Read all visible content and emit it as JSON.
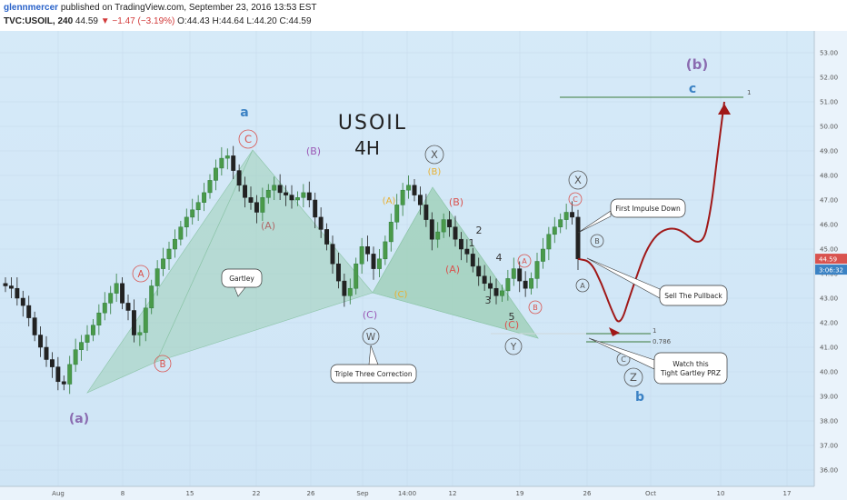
{
  "header": {
    "author": "glennmercer",
    "published": "published on TradingView.com, September 23, 2016 13:53 EST",
    "symbol": "TVC:USOIL, 240",
    "last": "44.59",
    "change": "▼ −1.47 (−3.19%)",
    "open": "O:44.43",
    "high": "H:44.64",
    "low": "L:44.20",
    "close": "C:44.59"
  },
  "chart_data": {
    "type": "candlestick",
    "title": "USOIL",
    "subtitle": "4H",
    "y_ticks": [
      "53.00",
      "52.00",
      "51.00",
      "50.00",
      "49.00",
      "48.00",
      "47.00",
      "46.00",
      "45.00",
      "44.00",
      "43.00",
      "42.00",
      "41.00",
      "40.00",
      "39.00",
      "38.00",
      "37.00",
      "36.00"
    ],
    "x_ticks": [
      "Aug",
      "8",
      "15",
      "22",
      "26",
      "Sep",
      "14:00",
      "12",
      "19",
      "26",
      "Oct",
      "10",
      "17"
    ],
    "price_label": "44.59",
    "countdown_label": "3:06:32",
    "fib_levels": [
      "1",
      "0.786"
    ],
    "top_fib_label": "1",
    "wave_labels": [
      {
        "t": "(a)",
        "c": "#8a6bb0"
      },
      {
        "t": "a",
        "c": "#3b82c4"
      },
      {
        "t": "C",
        "c": "#d9534f"
      },
      {
        "t": "(B)",
        "c": "#9b59b6"
      },
      {
        "t": "(A)",
        "c": "#b06a6a"
      },
      {
        "t": "A",
        "c": "#d9534f"
      },
      {
        "t": "B",
        "c": "#d9534f"
      },
      {
        "t": "(A)",
        "c": "#e8b030"
      },
      {
        "t": "(C)",
        "c": "#e8b030"
      },
      {
        "t": "(B)",
        "c": "#e8b030"
      },
      {
        "t": "X",
        "c": "#555555"
      },
      {
        "t": "(B)",
        "c": "#d9534f"
      },
      {
        "t": "(A)",
        "c": "#d9534f"
      },
      {
        "t": "1",
        "c": "#333333"
      },
      {
        "t": "2",
        "c": "#333333"
      },
      {
        "t": "3",
        "c": "#333333"
      },
      {
        "t": "4",
        "c": "#333333"
      },
      {
        "t": "5",
        "c": "#333333"
      },
      {
        "t": "(C)",
        "c": "#d9534f"
      },
      {
        "t": "(C)",
        "c": "#9b59b6"
      },
      {
        "t": "W",
        "c": "#555555"
      },
      {
        "t": "Y",
        "c": "#555555"
      },
      {
        "t": "X",
        "c": "#555555"
      },
      {
        "t": "C",
        "c": "#d9534f"
      },
      {
        "t": "B",
        "c": "#555555"
      },
      {
        "t": "A",
        "c": "#555555"
      },
      {
        "t": "A",
        "c": "#d9534f"
      },
      {
        "t": "B",
        "c": "#d9534f"
      },
      {
        "t": "C",
        "c": "#555555"
      },
      {
        "t": "Z",
        "c": "#555555"
      },
      {
        "t": "b",
        "c": "#3b82c4"
      },
      {
        "t": "(b)",
        "c": "#8a6bb0"
      },
      {
        "t": "c",
        "c": "#3b82c4"
      }
    ],
    "callouts": [
      "Gartley",
      "Triple Three Correction",
      "First Impulse Down",
      "Sell The Pullback",
      "Watch this Tight Gartley PRZ"
    ],
    "close_series": [
      43.5,
      43.4,
      43.0,
      42.7,
      42.2,
      41.5,
      41.0,
      40.5,
      40.2,
      39.6,
      39.5,
      40.3,
      40.9,
      41.2,
      41.5,
      41.9,
      42.4,
      42.8,
      43.2,
      43.6,
      42.8,
      42.5,
      41.5,
      41.6,
      42.6,
      43.5,
      44.2,
      44.6,
      45.0,
      45.4,
      45.9,
      46.3,
      46.6,
      46.9,
      47.3,
      47.8,
      48.3,
      48.7,
      48.8,
      48.2,
      47.6,
      47.1,
      46.9,
      46.5,
      47.1,
      47.4,
      47.6,
      47.3,
      47.2,
      47.0,
      47.1,
      47.3,
      47.0,
      46.3,
      45.8,
      45.2,
      44.4,
      43.7,
      43.1,
      43.4,
      44.4,
      45.1,
      44.8,
      44.2,
      44.6,
      45.3,
      46.1,
      46.8,
      47.4,
      47.6,
      47.2,
      46.8,
      46.2,
      45.4,
      45.7,
      46.2,
      45.9,
      45.4,
      45.0,
      44.8,
      44.3,
      43.9,
      43.6,
      43.4,
      43.1,
      43.3,
      43.8,
      44.2,
      43.7,
      43.4,
      43.8,
      44.5,
      45.0,
      45.6,
      45.9,
      46.2,
      46.5,
      46.3,
      44.6
    ],
    "projection_path_prices": [
      44.6,
      44.5,
      43.6,
      42.6,
      41.8,
      43.2,
      45.5,
      46.0,
      45.0,
      46.5,
      49.0,
      51.0
    ]
  }
}
